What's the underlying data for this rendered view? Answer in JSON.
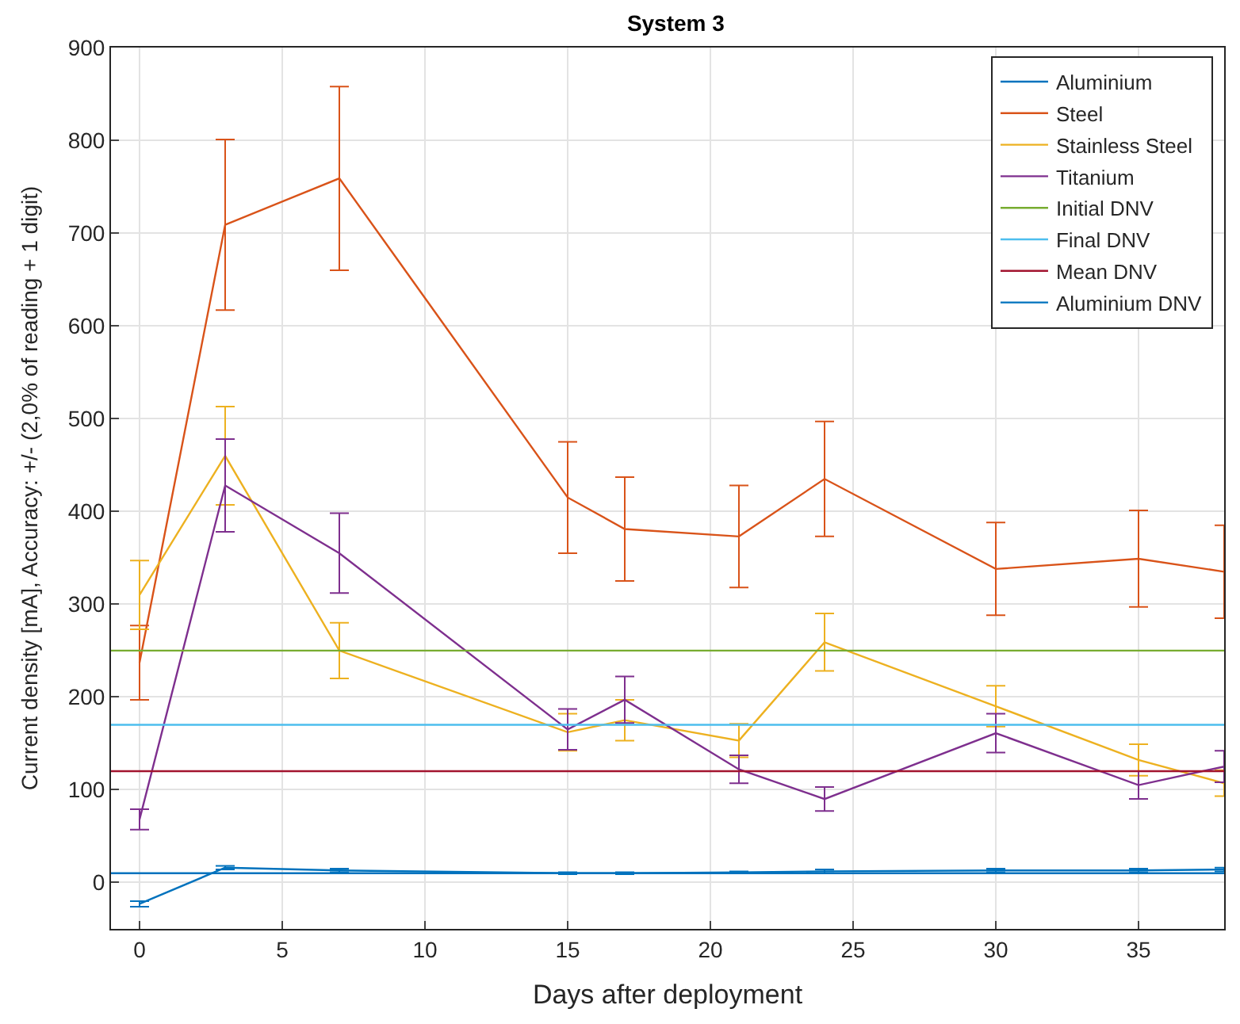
{
  "chart_data": {
    "type": "line",
    "title": "System 3",
    "xlabel": "Days after deployment",
    "ylabel": "Current density [mA], Accuracy: +/- (2,0% of reading + 1 digit)",
    "x": [
      0,
      3,
      7,
      15,
      17,
      21,
      24,
      30,
      35,
      38
    ],
    "series": [
      {
        "name": "Aluminium",
        "color": "#0072bd",
        "values": [
          -23,
          16,
          13,
          10,
          10,
          11,
          12,
          13,
          13,
          14
        ],
        "errors": [
          3,
          2,
          2,
          1,
          1,
          1,
          2,
          2,
          2,
          2
        ]
      },
      {
        "name": "Steel",
        "color": "#d95319",
        "values": [
          237,
          709,
          759,
          415,
          381,
          373,
          435,
          338,
          349,
          335
        ],
        "errors": [
          40,
          92,
          99,
          60,
          56,
          55,
          62,
          50,
          52,
          50
        ]
      },
      {
        "name": "Stainless Steel",
        "color": "#edb120",
        "values": [
          310,
          460,
          250,
          162,
          175,
          153,
          259,
          190,
          132,
          107
        ],
        "errors": [
          37,
          53,
          30,
          20,
          22,
          18,
          31,
          22,
          17,
          14
        ]
      },
      {
        "name": "Titanium",
        "color": "#7e2f8e",
        "values": [
          68,
          428,
          355,
          165,
          197,
          122,
          90,
          161,
          105,
          125
        ],
        "errors": [
          11,
          50,
          43,
          22,
          25,
          15,
          13,
          21,
          15,
          17
        ]
      }
    ],
    "ref_lines": [
      {
        "axis": "y",
        "value": 250,
        "label": "Initial DNV",
        "color": "#77ac30"
      },
      {
        "axis": "y",
        "value": 170,
        "label": "Final DNV",
        "color": "#4dbeee"
      },
      {
        "axis": "y",
        "value": 120,
        "label": "Mean DNV",
        "color": "#a2142f"
      },
      {
        "axis": "y",
        "value": 10,
        "label": "Aluminium DNV",
        "color": "#0072bd"
      }
    ],
    "xlim": [
      -1,
      38
    ],
    "xticks": [
      0,
      5,
      10,
      15,
      20,
      25,
      30,
      35
    ],
    "ylim": [
      -50,
      900
    ],
    "yticks": [
      0,
      100,
      200,
      300,
      400,
      500,
      600,
      700,
      800,
      900
    ],
    "grid": true,
    "legend": "top right",
    "line_style": "solid"
  }
}
